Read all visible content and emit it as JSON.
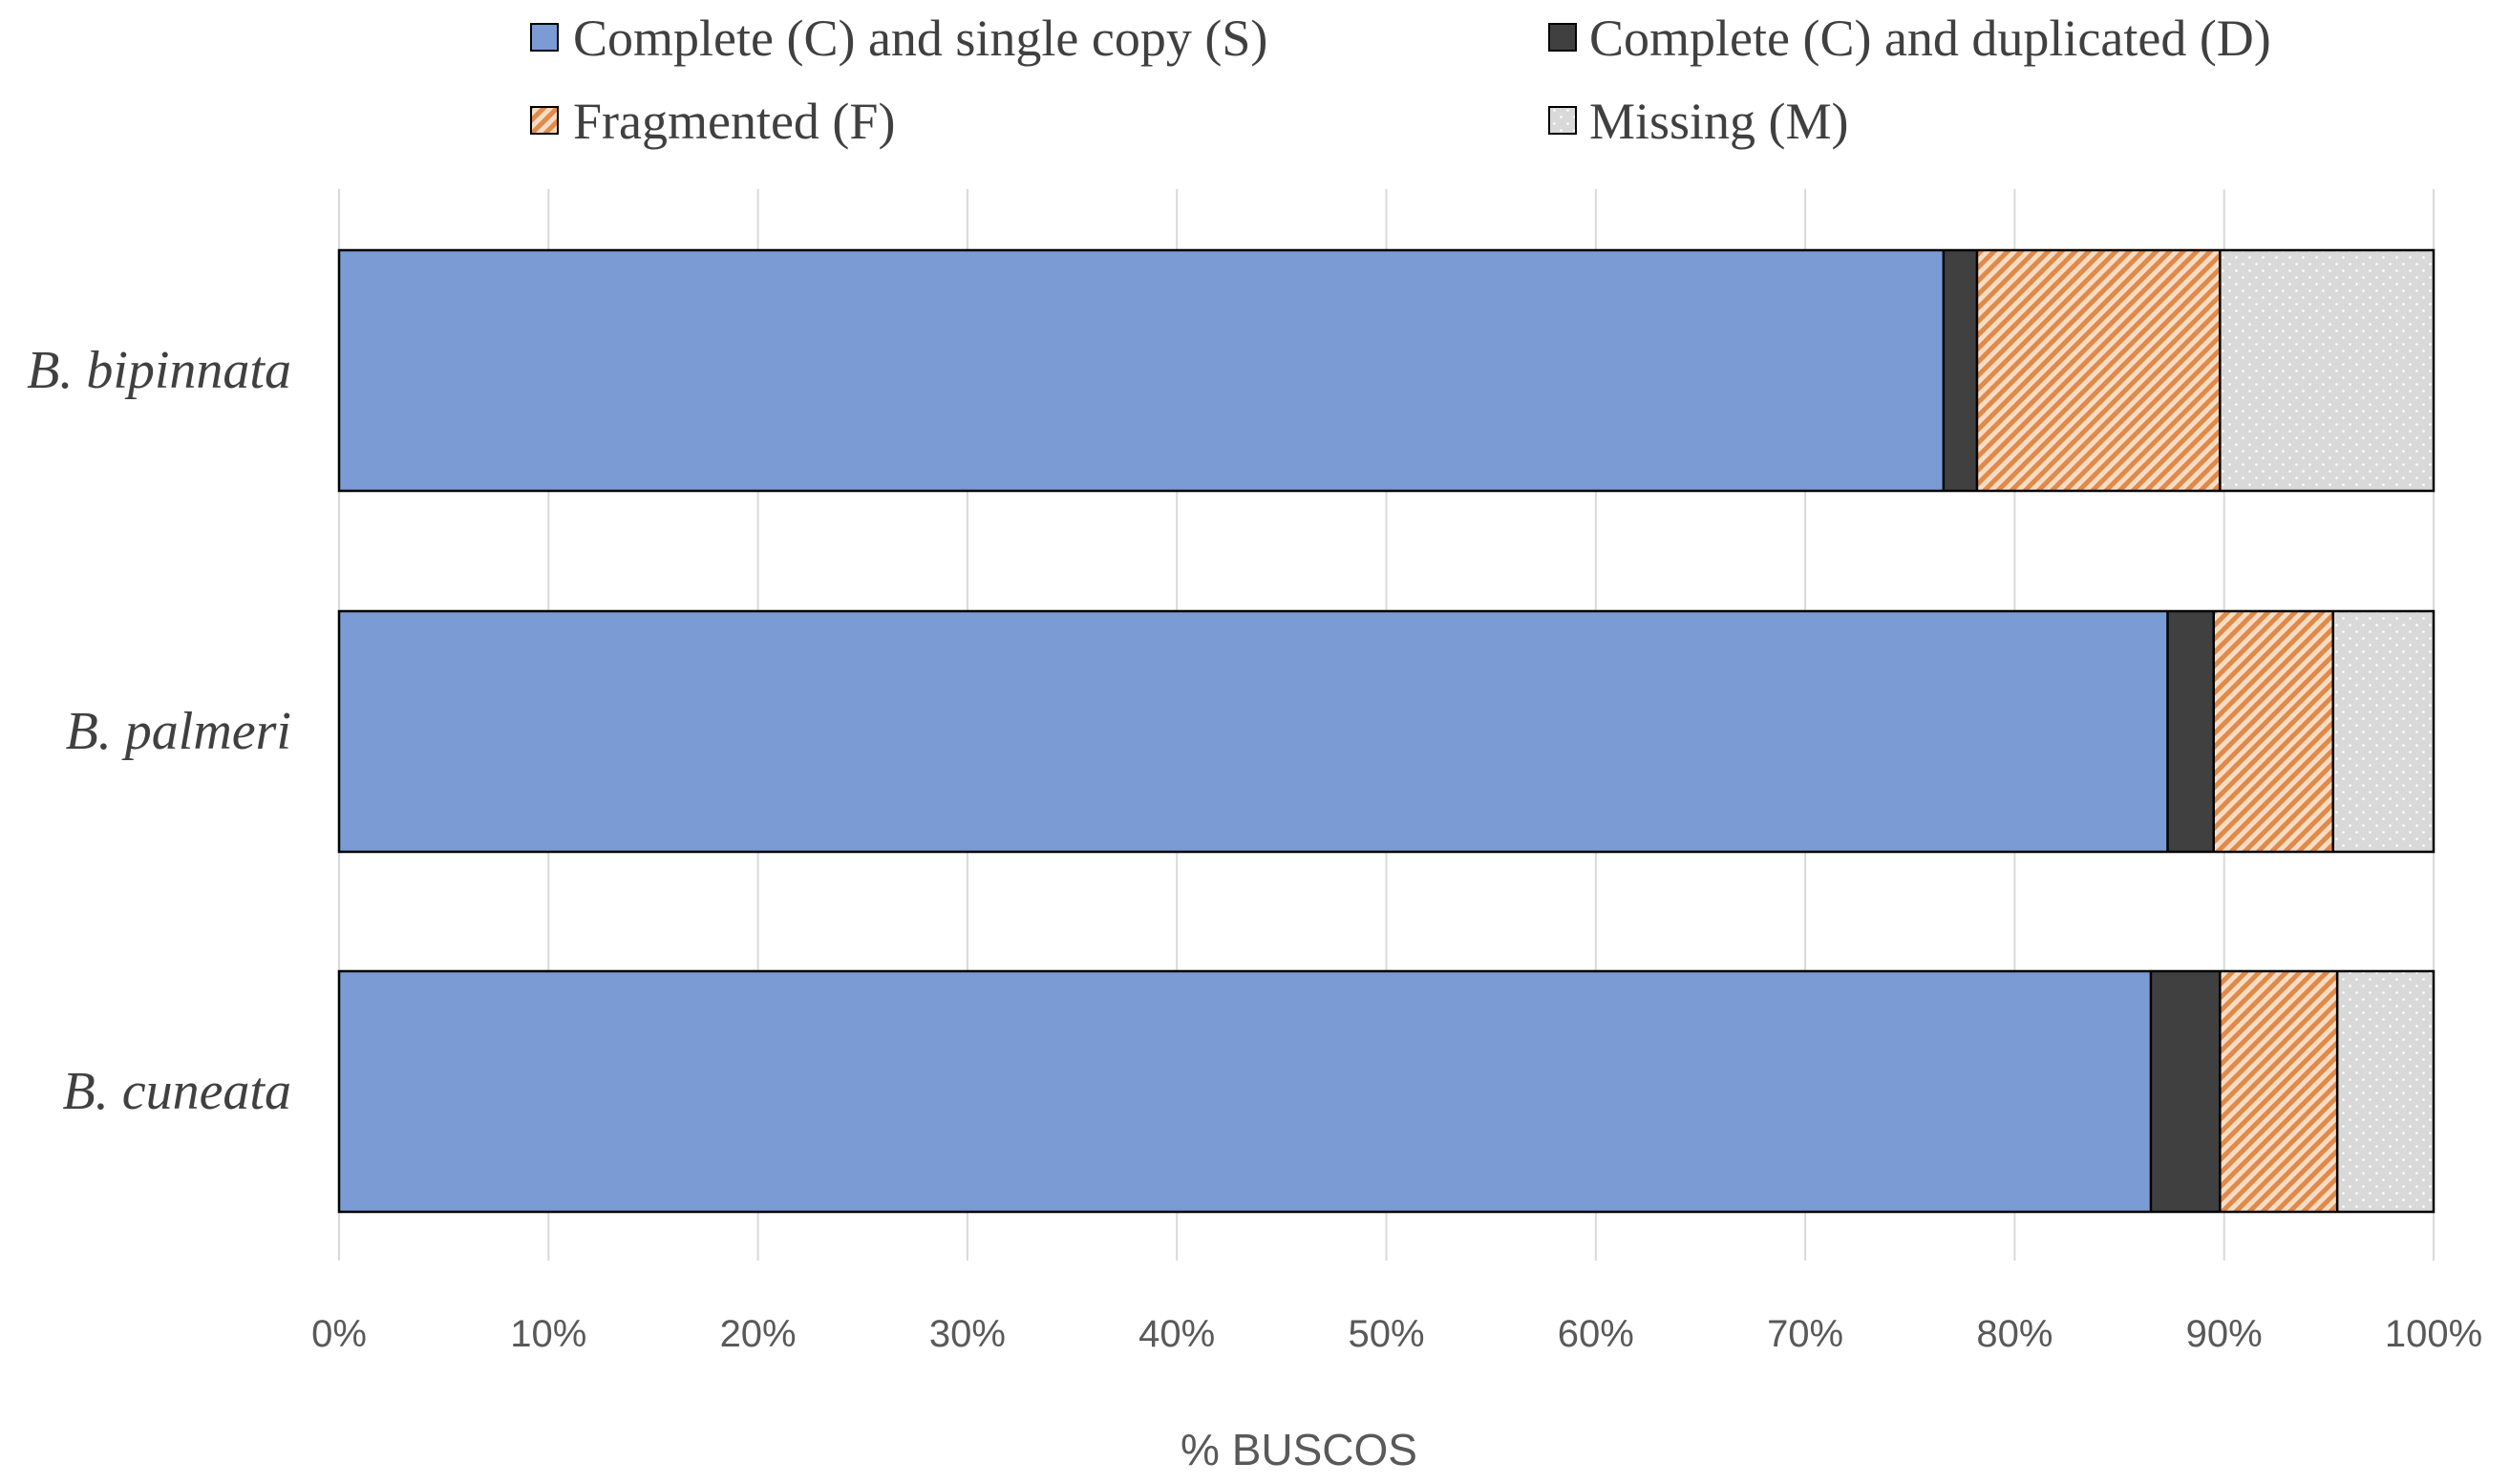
{
  "chart_data": {
    "type": "bar",
    "orientation": "horizontal",
    "stacked": true,
    "title": "",
    "xlabel": "% BUSCOS",
    "ylabel": "",
    "xlim": [
      0,
      100
    ],
    "x_ticks": [
      "0%",
      "10%",
      "20%",
      "30%",
      "40%",
      "50%",
      "60%",
      "70%",
      "80%",
      "90%",
      "100%"
    ],
    "grid": true,
    "legend_position": "top",
    "categories": [
      "B. bipinnata",
      "B. palmeri",
      "B. cuneata"
    ],
    "series": [
      {
        "name": "Complete (C) and single copy (S)",
        "key": "S",
        "values": [
          76.6,
          87.3,
          86.5
        ]
      },
      {
        "name": "Complete (C) and duplicated (D)",
        "key": "D",
        "values": [
          1.6,
          2.2,
          3.3
        ]
      },
      {
        "name": "Fragmented (F)",
        "key": "F",
        "values": [
          11.6,
          5.7,
          5.6
        ]
      },
      {
        "name": "Missing (M)",
        "key": "M",
        "values": [
          10.2,
          4.8,
          4.6
        ]
      }
    ],
    "colors": {
      "S": "#7b9bd4",
      "D": "#404040",
      "F": "#ec9d5c",
      "M": "#d9d9d9",
      "grid": "#d9d9d9",
      "outline": "#000000"
    }
  }
}
